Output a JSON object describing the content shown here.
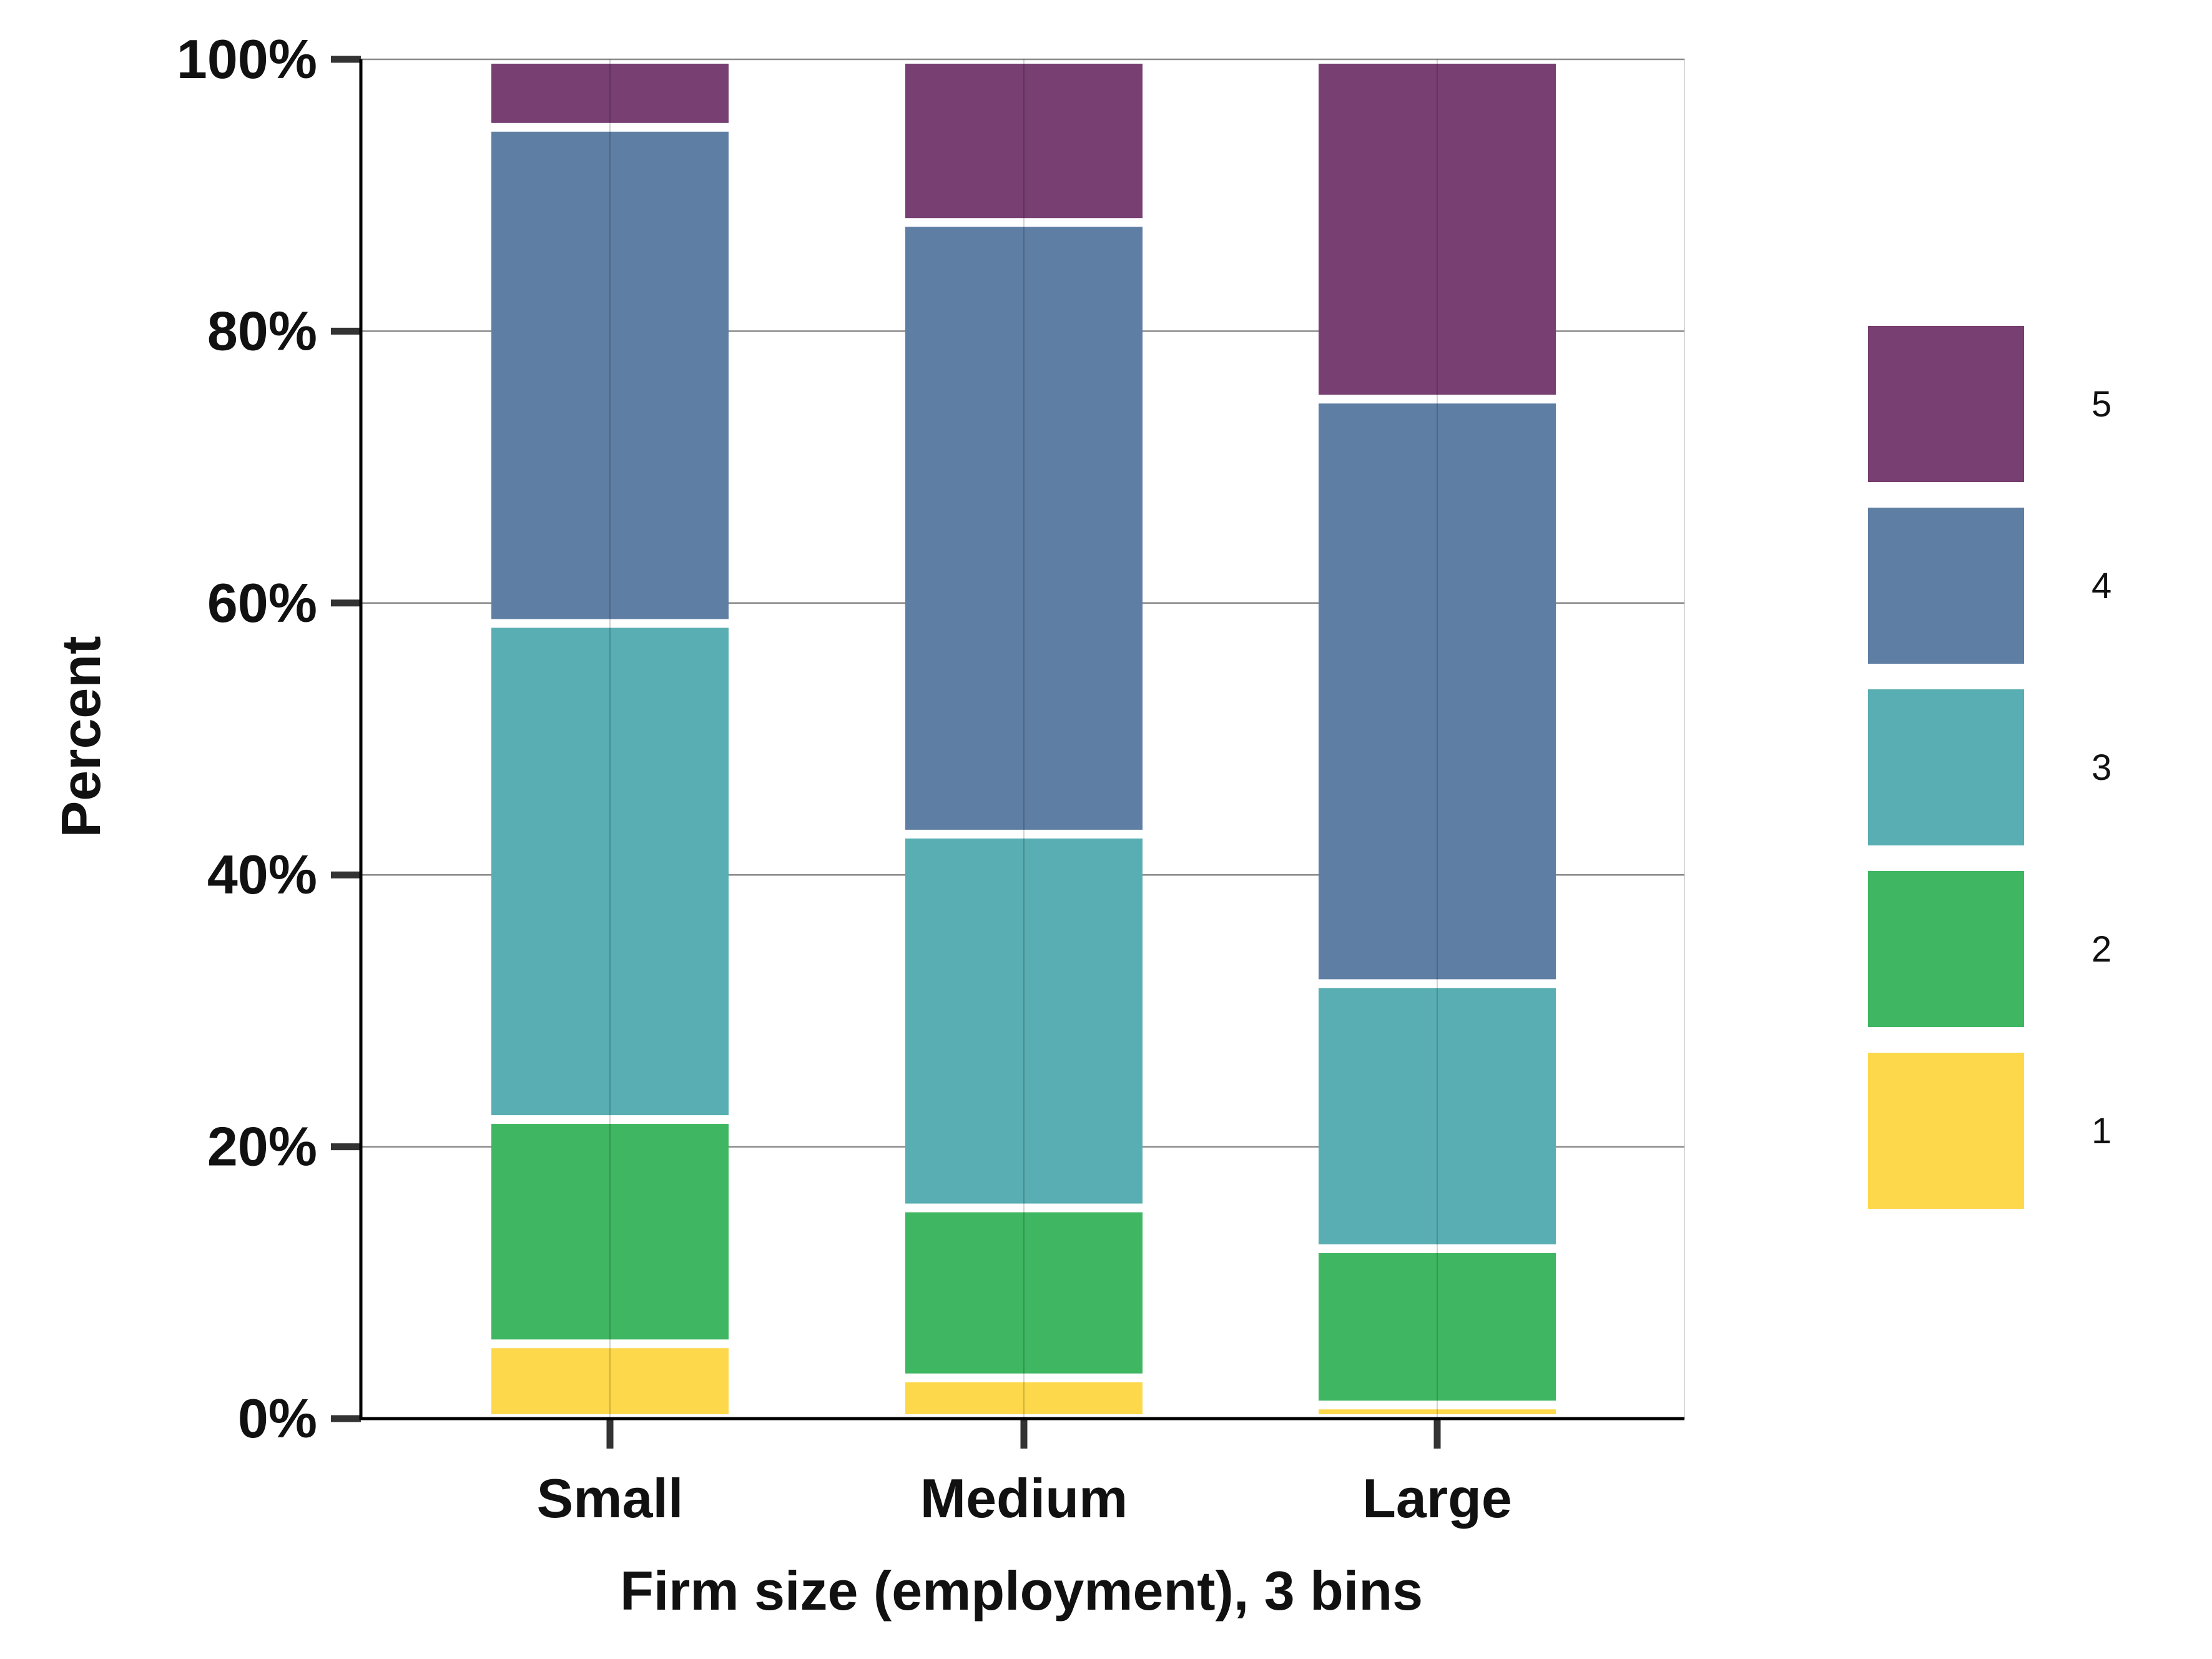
{
  "chart_data": {
    "type": "bar",
    "stacked": true,
    "normalized_percent": true,
    "title": "",
    "xlabel": "Firm size (employment), 3 bins",
    "ylabel": "Percent",
    "ylim": [
      0,
      100
    ],
    "yticks": [
      "0%",
      "20%",
      "40%",
      "60%",
      "80%",
      "100%"
    ],
    "categories": [
      "Small",
      "Medium",
      "Large"
    ],
    "series": [
      {
        "name": "1",
        "color": "#fdd84b",
        "values": [
          5.5,
          3.0,
          1.0
        ]
      },
      {
        "name": "2",
        "color": "#3fb662",
        "values": [
          16.5,
          12.5,
          11.5
        ]
      },
      {
        "name": "3",
        "color": "#58aeb2",
        "values": [
          36.5,
          27.5,
          19.5
        ]
      },
      {
        "name": "4",
        "color": "#5f7ea3",
        "values": [
          36.5,
          45.0,
          43.0
        ]
      },
      {
        "name": "5",
        "color": "#773f72",
        "values": [
          5.0,
          12.0,
          25.0
        ]
      }
    ],
    "legend_position": "right",
    "grid": true
  }
}
